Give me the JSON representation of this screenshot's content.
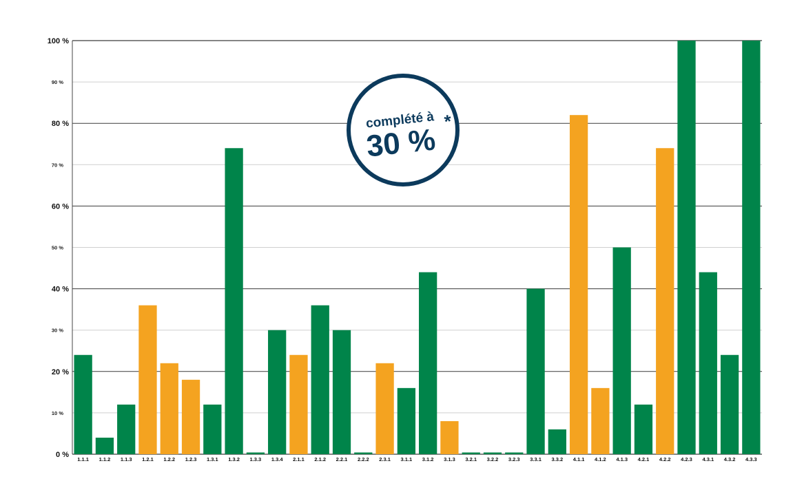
{
  "chart_data": {
    "type": "bar",
    "categories": [
      "1.1.1",
      "1.1.2",
      "1.1.3",
      "1.2.1",
      "1.2.2",
      "1.2.3",
      "1.3.1",
      "1.3.2",
      "1.3.3",
      "1.3.4",
      "2.1.1",
      "2.1.2",
      "2.2.1",
      "2.2.2",
      "2.3.1",
      "3.1.1",
      "3.1.2",
      "3.1.3",
      "3.2.1",
      "3.2.2",
      "3.2.3",
      "3.3.1",
      "3.3.2",
      "4.1.1",
      "4.1.2",
      "4.1.3",
      "4.2.1",
      "4.2.2",
      "4.2.3",
      "4.3.1",
      "4.3.2",
      "4.3.3"
    ],
    "values": [
      24,
      4,
      12,
      36,
      22,
      18,
      12,
      74,
      0,
      30,
      24,
      36,
      30,
      0,
      22,
      16,
      44,
      8,
      0,
      0,
      0,
      40,
      6,
      82,
      16,
      50,
      12,
      74,
      100,
      44,
      24,
      100
    ],
    "bar_colors": [
      "green",
      "green",
      "green",
      "orange",
      "orange",
      "orange",
      "green",
      "green",
      "green",
      "green",
      "orange",
      "green",
      "green",
      "green",
      "orange",
      "green",
      "green",
      "orange",
      "green",
      "green",
      "green",
      "green",
      "green",
      "orange",
      "orange",
      "green",
      "green",
      "orange",
      "green",
      "green",
      "green",
      "green"
    ],
    "colors": {
      "green": "#00844a",
      "orange": "#f4a320",
      "badge": "#0c3a5c",
      "grid_major": "#3a3a3a",
      "grid_minor": "#cfcfcf"
    },
    "ylim": [
      0,
      100
    ],
    "yticks_major": [
      "0 %",
      "20 %",
      "40 %",
      "60 %",
      "80 %",
      "100 %"
    ],
    "yticks_minor": [
      "10 %",
      "30 %",
      "50 %",
      "70 %",
      "90 %"
    ],
    "badge": {
      "line1": "complété à",
      "line2": "30 %",
      "mark": "*"
    },
    "grid": true,
    "legend": "none"
  }
}
